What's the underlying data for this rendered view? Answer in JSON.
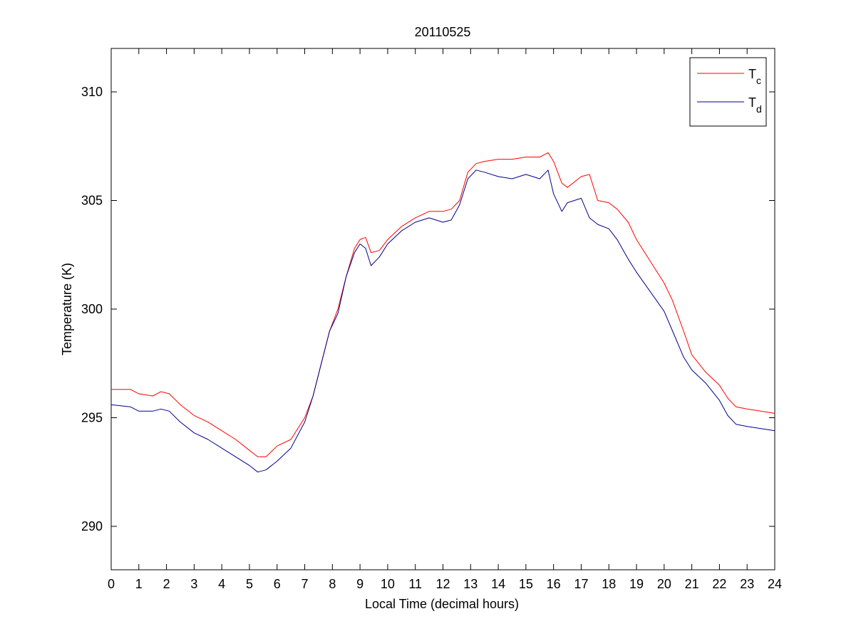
{
  "chart_data": {
    "type": "line",
    "title": "20110525",
    "xlabel": "Local Time (decimal hours)",
    "ylabel": "Temperature (K)",
    "xlim": [
      0,
      24
    ],
    "ylim": [
      288,
      312
    ],
    "xticks": [
      0,
      1,
      2,
      3,
      4,
      5,
      6,
      7,
      8,
      9,
      10,
      11,
      12,
      13,
      14,
      15,
      16,
      17,
      18,
      19,
      20,
      21,
      22,
      23,
      24
    ],
    "yticks": [
      290,
      295,
      300,
      305,
      310
    ],
    "grid": false,
    "legend_position": "top-right",
    "series": [
      {
        "name": "T",
        "subscript": "c",
        "color": "#ff0000",
        "x": [
          0,
          0.7,
          1.0,
          1.5,
          1.8,
          2.1,
          2.5,
          3.0,
          3.5,
          4.0,
          4.5,
          5.0,
          5.3,
          5.6,
          6.0,
          6.5,
          7.0,
          7.3,
          7.6,
          7.9,
          8.2,
          8.5,
          8.8,
          9.0,
          9.2,
          9.4,
          9.7,
          10.0,
          10.5,
          11.0,
          11.5,
          12.0,
          12.3,
          12.6,
          12.9,
          13.2,
          13.5,
          14.0,
          14.5,
          15.0,
          15.5,
          15.8,
          16.0,
          16.3,
          16.5,
          17.0,
          17.3,
          17.6,
          18.0,
          18.3,
          18.7,
          19.0,
          19.5,
          20.0,
          20.3,
          20.7,
          21.0,
          21.5,
          22.0,
          22.3,
          22.6,
          23.0,
          23.5,
          24.0
        ],
        "y": [
          296.3,
          296.3,
          296.1,
          296.0,
          296.2,
          296.1,
          295.6,
          295.1,
          294.8,
          294.4,
          294.0,
          293.5,
          293.2,
          293.2,
          293.7,
          294.0,
          295.0,
          296.0,
          297.5,
          299.0,
          300.0,
          301.5,
          302.8,
          303.2,
          303.3,
          302.6,
          302.7,
          303.2,
          303.8,
          304.2,
          304.5,
          304.5,
          304.6,
          305.0,
          306.3,
          306.7,
          306.8,
          306.9,
          306.9,
          307.0,
          307.0,
          307.2,
          306.8,
          305.8,
          305.6,
          306.1,
          306.2,
          305.0,
          304.9,
          304.6,
          304.0,
          303.2,
          302.2,
          301.2,
          300.4,
          299.0,
          297.9,
          297.1,
          296.5,
          295.9,
          295.5,
          295.4,
          295.3,
          295.2
        ]
      },
      {
        "name": "T",
        "subscript": "d",
        "color": "#00008b",
        "x": [
          0,
          0.7,
          1.0,
          1.5,
          1.8,
          2.1,
          2.5,
          3.0,
          3.5,
          4.0,
          4.5,
          5.0,
          5.3,
          5.6,
          6.0,
          6.5,
          7.0,
          7.3,
          7.6,
          7.9,
          8.2,
          8.5,
          8.8,
          9.0,
          9.2,
          9.4,
          9.7,
          10.0,
          10.5,
          11.0,
          11.5,
          12.0,
          12.3,
          12.6,
          12.9,
          13.2,
          13.5,
          14.0,
          14.5,
          15.0,
          15.5,
          15.8,
          16.0,
          16.3,
          16.5,
          17.0,
          17.3,
          17.6,
          18.0,
          18.3,
          18.7,
          19.0,
          19.5,
          20.0,
          20.3,
          20.7,
          21.0,
          21.5,
          22.0,
          22.3,
          22.6,
          23.0,
          23.5,
          24.0
        ],
        "y": [
          295.6,
          295.5,
          295.3,
          295.3,
          295.4,
          295.3,
          294.8,
          294.3,
          294.0,
          293.6,
          293.2,
          292.8,
          292.5,
          292.6,
          293.0,
          293.6,
          294.8,
          296.0,
          297.5,
          299.0,
          299.8,
          301.5,
          302.6,
          303.0,
          302.8,
          302.0,
          302.4,
          303.0,
          303.6,
          304.0,
          304.2,
          304.0,
          304.1,
          304.8,
          306.0,
          306.4,
          306.3,
          306.1,
          306.0,
          306.2,
          306.0,
          306.4,
          305.3,
          304.5,
          304.9,
          305.1,
          304.2,
          303.9,
          303.7,
          303.2,
          302.3,
          301.7,
          300.8,
          299.9,
          299.0,
          297.8,
          297.2,
          296.6,
          295.8,
          295.1,
          294.7,
          294.6,
          294.5,
          294.4
        ]
      }
    ]
  }
}
